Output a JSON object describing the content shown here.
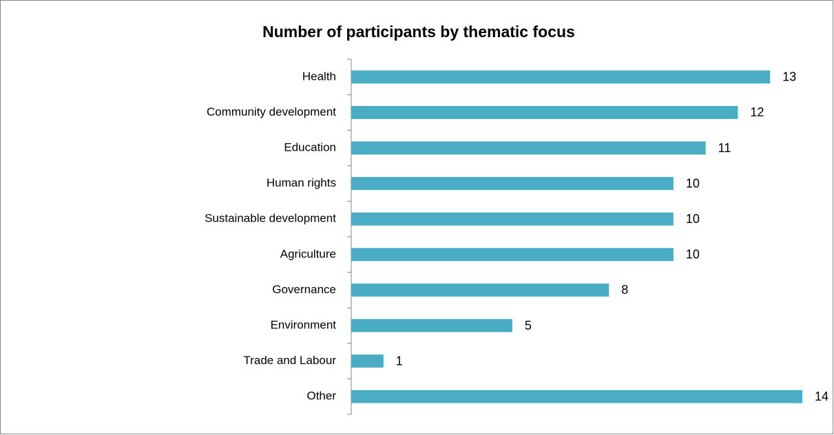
{
  "chart_data": {
    "type": "bar",
    "orientation": "horizontal",
    "title": "Number of participants by thematic focus",
    "categories": [
      "Health",
      "Community development",
      "Education",
      "Human rights",
      "Sustainable development",
      "Agriculture",
      "Governance",
      "Environment",
      "Trade and Labour",
      "Other"
    ],
    "values": [
      13,
      12,
      11,
      10,
      10,
      10,
      8,
      5,
      1,
      14
    ],
    "color": "#4bacc6"
  }
}
